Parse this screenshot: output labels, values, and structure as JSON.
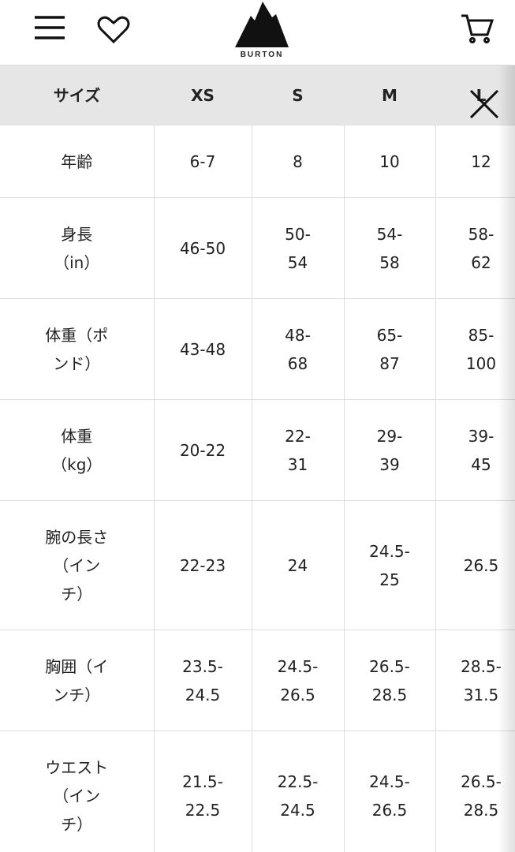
{
  "header": {
    "logo": "BURTON"
  },
  "table": {
    "columns": [
      "サイズ",
      "XS",
      "S",
      "M",
      "L"
    ],
    "rows": [
      [
        [
          "年齢"
        ],
        [
          "6-7"
        ],
        [
          "8"
        ],
        [
          "10"
        ],
        [
          "12"
        ]
      ],
      [
        [
          "身長",
          "（in）"
        ],
        [
          "46-50"
        ],
        [
          "50-",
          "54"
        ],
        [
          "54-",
          "58"
        ],
        [
          "58-",
          "62"
        ]
      ],
      [
        [
          "体重（ポ",
          "ンド）"
        ],
        [
          "43-48"
        ],
        [
          "48-",
          "68"
        ],
        [
          "65-",
          "87"
        ],
        [
          "85-",
          "100"
        ]
      ],
      [
        [
          "体重",
          "（kg）"
        ],
        [
          "20-22"
        ],
        [
          "22-",
          "31"
        ],
        [
          "29-",
          "39"
        ],
        [
          "39-",
          "45"
        ]
      ],
      [
        [
          "腕の長さ",
          "（イン",
          "チ）"
        ],
        [
          "22-23"
        ],
        [
          "24"
        ],
        [
          "24.5-",
          "25"
        ],
        [
          "26.5"
        ]
      ],
      [
        [
          "胸囲（イ",
          "ンチ）"
        ],
        [
          "23.5-",
          "24.5"
        ],
        [
          "24.5-",
          "26.5"
        ],
        [
          "26.5-",
          "28.5"
        ],
        [
          "28.5-",
          "31.5"
        ]
      ],
      [
        [
          "ウエスト",
          "（イン",
          "チ）"
        ],
        [
          "21.5-",
          "22.5"
        ],
        [
          "22.5-",
          "24.5"
        ],
        [
          "24.5-",
          "26.5"
        ],
        [
          "26.5-",
          "28.5"
        ]
      ]
    ]
  }
}
